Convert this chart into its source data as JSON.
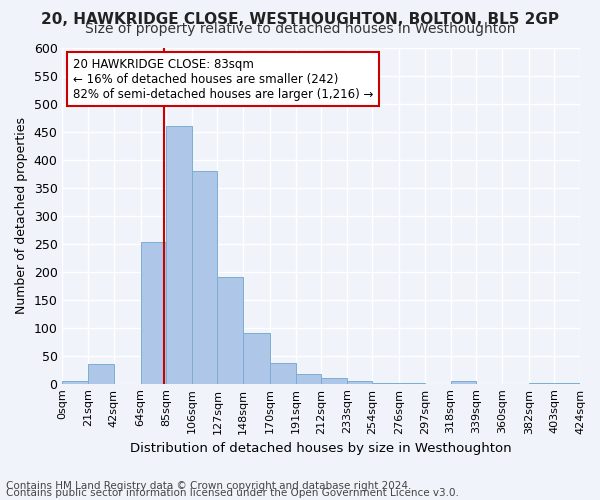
{
  "title1": "20, HAWKRIDGE CLOSE, WESTHOUGHTON, BOLTON, BL5 2GP",
  "title2": "Size of property relative to detached houses in Westhoughton",
  "xlabel": "Distribution of detached houses by size in Westhoughton",
  "ylabel": "Number of detached properties",
  "bar_color": "#aec6e8",
  "bar_edge_color": "#7aaed0",
  "vline_x": 83,
  "vline_color": "#cc0000",
  "annotation_title": "20 HAWKRIDGE CLOSE: 83sqm",
  "annotation_line1": "← 16% of detached houses are smaller (242)",
  "annotation_line2": "82% of semi-detached houses are larger (1,216) →",
  "annotation_box_color": "#ffffff",
  "annotation_box_edge": "#cc0000",
  "bin_edges": [
    0,
    21,
    42,
    64,
    85,
    106,
    127,
    148,
    170,
    191,
    212,
    233,
    254,
    276,
    297,
    318,
    339,
    360,
    382,
    403,
    424
  ],
  "bin_labels": [
    "0sqm",
    "21sqm",
    "42sqm",
    "64sqm",
    "85sqm",
    "106sqm",
    "127sqm",
    "148sqm",
    "170sqm",
    "191sqm",
    "212sqm",
    "233sqm",
    "254sqm",
    "276sqm",
    "297sqm",
    "318sqm",
    "339sqm",
    "360sqm",
    "382sqm",
    "403sqm",
    "424sqm"
  ],
  "bar_heights": [
    5,
    35,
    0,
    252,
    460,
    380,
    190,
    91,
    37,
    18,
    10,
    5,
    2,
    2,
    0,
    5,
    0,
    0,
    2,
    2
  ],
  "ylim": [
    0,
    600
  ],
  "yticks": [
    0,
    50,
    100,
    150,
    200,
    250,
    300,
    350,
    400,
    450,
    500,
    550,
    600
  ],
  "footer1": "Contains HM Land Registry data © Crown copyright and database right 2024.",
  "footer2": "Contains public sector information licensed under the Open Government Licence v3.0.",
  "bg_color": "#f0f4fa",
  "grid_color": "#ffffff",
  "title1_fontsize": 11,
  "title2_fontsize": 10,
  "axis_fontsize": 9,
  "footer_fontsize": 7.5
}
